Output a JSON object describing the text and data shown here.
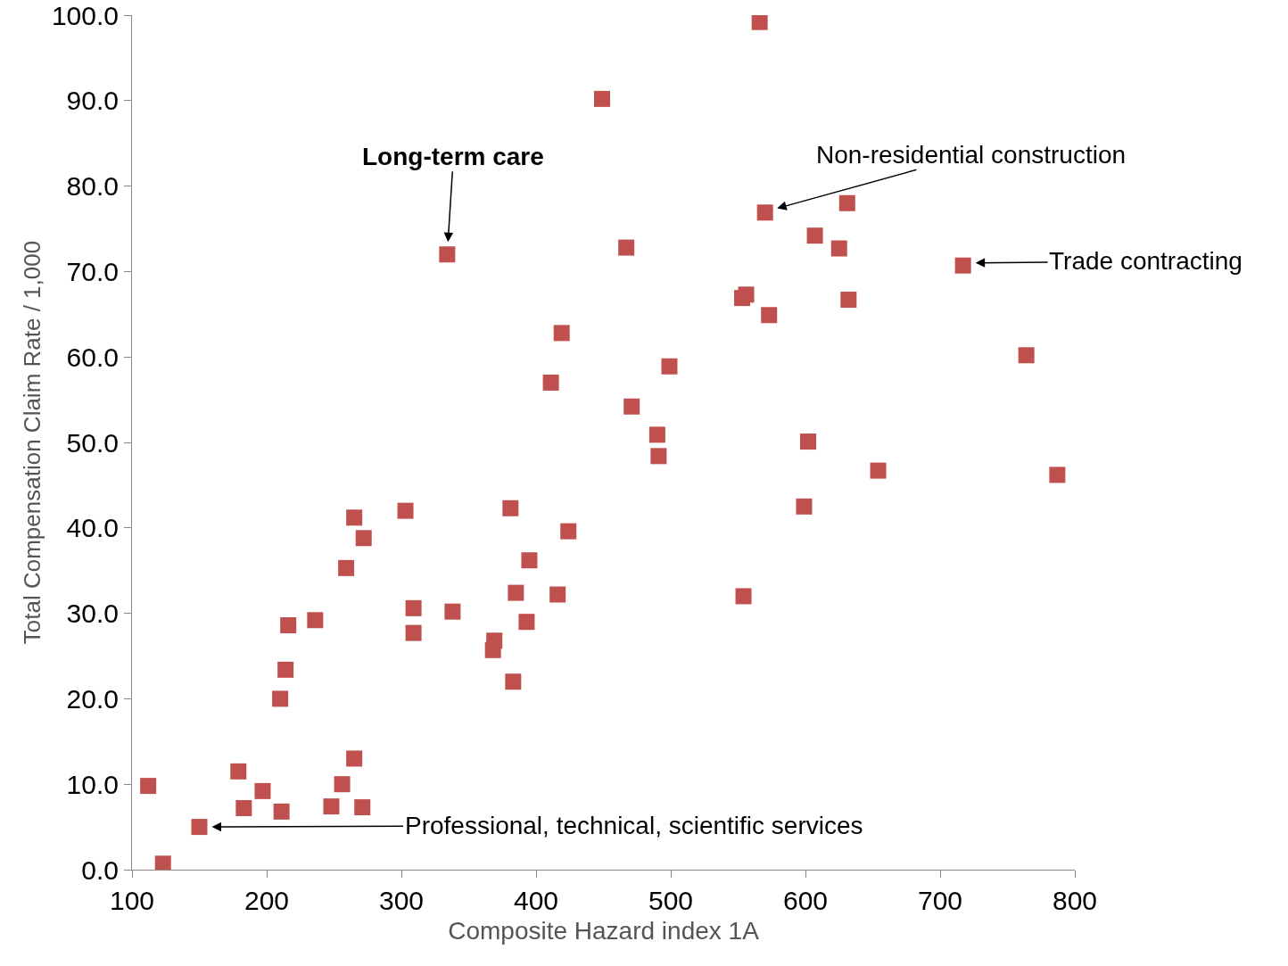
{
  "chart_data": {
    "type": "scatter",
    "xlabel": "Composite Hazard index 1A",
    "ylabel": "Total Compensation Claim Rate / 1,000",
    "marker": "square",
    "grid": false,
    "xlim": [
      100,
      800
    ],
    "xticks": [
      100,
      200,
      300,
      400,
      500,
      600,
      700,
      800
    ],
    "ylim": [
      0,
      100
    ],
    "yticks": [
      {
        "value": 0,
        "label": "0.0"
      },
      {
        "value": 10,
        "label": "10.0"
      },
      {
        "value": 20,
        "label": "20.0"
      },
      {
        "value": 30,
        "label": "30.0"
      },
      {
        "value": 40,
        "label": "40.0"
      },
      {
        "value": 50,
        "label": "50.0"
      },
      {
        "value": 60,
        "label": "60.0"
      },
      {
        "value": 70,
        "label": "70.0"
      },
      {
        "value": 80,
        "label": "80.0"
      },
      {
        "value": 90,
        "label": "90.0"
      },
      {
        "value": 100,
        "label": "100.0"
      }
    ],
    "annotations": [
      {
        "text": "Long-term care",
        "x": 334,
        "y": 72
      },
      {
        "text": "Non-residential construction",
        "x": 570,
        "y": 77
      },
      {
        "text": "Trade contracting",
        "x": 717,
        "y": 71
      },
      {
        "text": "Professional, technical, scientific services",
        "x": 150,
        "y": 5
      }
    ],
    "series": [
      {
        "color": "#c0504d",
        "x": [
          112,
          123,
          150,
          179,
          183,
          197,
          211,
          210,
          214,
          216,
          236,
          248,
          256,
          259,
          265,
          265,
          271,
          272,
          303,
          309,
          309,
          334,
          338,
          368,
          369,
          381,
          383,
          385,
          393,
          395,
          411,
          416,
          419,
          424,
          449,
          467,
          471,
          490,
          491,
          499,
          553,
          556,
          554,
          566,
          570,
          573,
          599,
          602,
          607,
          625,
          631,
          632,
          654,
          717,
          764,
          787
        ],
        "values": [
          9.8,
          0.7,
          5.0,
          11.5,
          7.2,
          9.2,
          6.8,
          20.0,
          23.4,
          28.6,
          29.2,
          7.4,
          10.0,
          35.3,
          41.2,
          13.0,
          7.3,
          38.8,
          42.0,
          30.6,
          27.7,
          72,
          30.2,
          25.7,
          26.8,
          42.3,
          22.0,
          32.4,
          29.0,
          36.2,
          57.0,
          32.2,
          62.8,
          39.6,
          90.2,
          72.8,
          54.2,
          50.9,
          48.4,
          58.9,
          66.9,
          67.3,
          32.0,
          99.2,
          76.9,
          64.9,
          42.5,
          50.1,
          74.2,
          72.7,
          78.0,
          66.7,
          46.7,
          70.7,
          60.2,
          46.2
        ]
      }
    ]
  }
}
